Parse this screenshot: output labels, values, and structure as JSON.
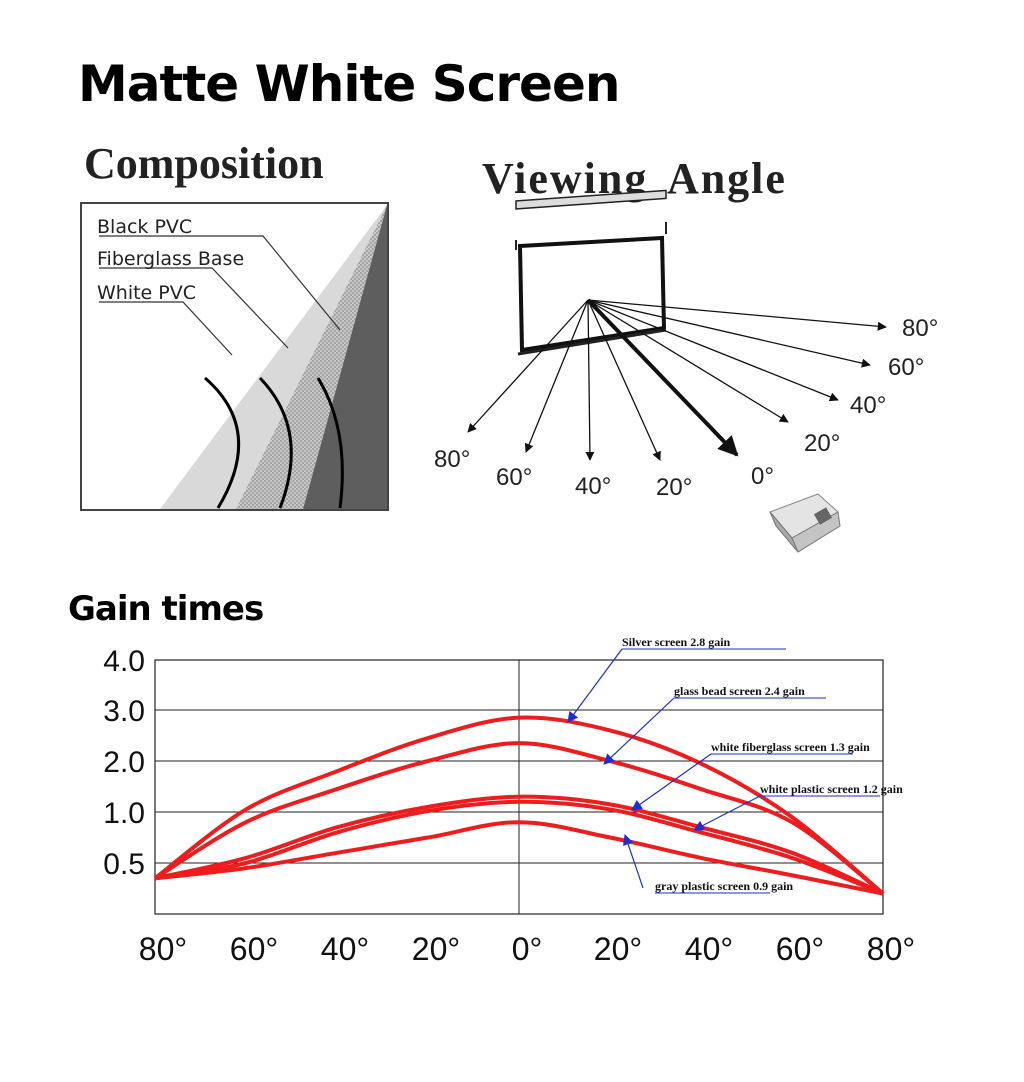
{
  "header": {
    "title": "Matte White Screen",
    "composition_title": "Composition",
    "viewing_angle_title": "Viewing Angle",
    "gain_title": "Gain times"
  },
  "composition": {
    "layers": [
      "Black PVC",
      "Fiberglass Base",
      "White PVC"
    ]
  },
  "viewing_angle": {
    "right_labels": [
      "80°",
      "60°",
      "40°",
      "20°"
    ],
    "bottom_labels": [
      "80°",
      "60°",
      "40°",
      "20°",
      "0°"
    ]
  },
  "colors": {
    "curve": "#ee1c1c",
    "annotation_arrow": "#1a2fd6"
  },
  "chart_data": {
    "type": "line",
    "title": "",
    "xlabel": "",
    "ylabel": "",
    "x": [
      -80,
      -60,
      -40,
      -20,
      0,
      20,
      40,
      60,
      80
    ],
    "x_tick_labels": [
      "80°",
      "60°",
      "40°",
      "20°",
      "0°",
      "20°",
      "40°",
      "60°",
      "80°"
    ],
    "y_tick_labels": [
      "4.0",
      "3.0",
      "2.0",
      "1.0",
      "0.5"
    ],
    "y_tick_values": [
      4.0,
      3.0,
      2.0,
      1.0,
      0.5
    ],
    "y_scale": "categorical-ticks (0.5, 1.0, 2.0, 3.0, 4.0 evenly spaced)",
    "grid": true,
    "series": [
      {
        "name": "Silver screen 2.8 gain",
        "values": [
          0.35,
          1.05,
          1.8,
          2.45,
          2.85,
          2.6,
          1.95,
          0.95,
          0.2
        ]
      },
      {
        "name": "glass bead screen 2.4 gain",
        "values": [
          0.35,
          0.9,
          1.45,
          2.0,
          2.35,
          2.0,
          1.45,
          0.9,
          0.2
        ]
      },
      {
        "name": "white fiberglass screen 1.3 gain",
        "values": [
          0.35,
          0.55,
          0.85,
          1.1,
          1.3,
          1.15,
          0.85,
          0.6,
          0.2
        ]
      },
      {
        "name": "white plastic screen 1.2 gain",
        "values": [
          0.35,
          0.5,
          0.8,
          1.02,
          1.2,
          1.05,
          0.8,
          0.55,
          0.2
        ]
      },
      {
        "name": "gray plastic screen 0.9 gain",
        "values": [
          0.35,
          0.45,
          0.6,
          0.75,
          0.9,
          0.75,
          0.55,
          0.38,
          0.2
        ]
      }
    ]
  }
}
